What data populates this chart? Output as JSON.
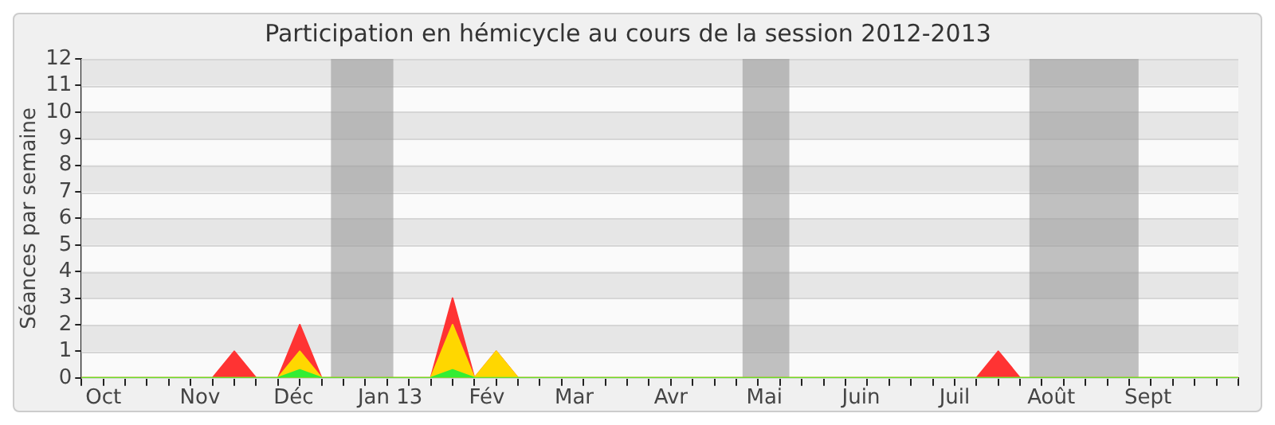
{
  "chart_data": {
    "type": "area",
    "title": "Participation en hémicycle au cours de la session 2012-2013",
    "ylabel": "Séances par semaine",
    "x": [
      "2012-09-24",
      "2012-10-01",
      "2012-10-08",
      "2012-10-15",
      "2012-10-22",
      "2012-10-29",
      "2012-11-05",
      "2012-11-12",
      "2012-11-19",
      "2012-11-26",
      "2012-12-03",
      "2012-12-10",
      "2012-12-17",
      "2012-12-24",
      "2012-12-31",
      "2013-01-07",
      "2013-01-14",
      "2013-01-21",
      "2013-01-28",
      "2013-02-04",
      "2013-02-11",
      "2013-02-18",
      "2013-02-25",
      "2013-03-04",
      "2013-03-11",
      "2013-03-18",
      "2013-03-25",
      "2013-04-01",
      "2013-04-08",
      "2013-04-15",
      "2013-04-22",
      "2013-04-29",
      "2013-05-06",
      "2013-05-13",
      "2013-05-20",
      "2013-05-27",
      "2013-06-03",
      "2013-06-10",
      "2013-06-17",
      "2013-06-24",
      "2013-07-01",
      "2013-07-08",
      "2013-07-15",
      "2013-07-22",
      "2013-07-29",
      "2013-08-05",
      "2013-08-12",
      "2013-08-19",
      "2013-08-26",
      "2013-09-02",
      "2013-09-09",
      "2013-09-16",
      "2013-09-23",
      "2013-09-30"
    ],
    "series": [
      {
        "color": "#ff3333",
        "values": [
          0,
          0,
          0,
          0,
          0,
          0,
          0,
          1,
          0,
          0,
          2,
          0,
          0,
          0,
          0,
          0,
          0,
          3,
          0,
          1,
          0,
          0,
          0,
          0,
          0,
          0,
          0,
          0,
          0,
          0,
          0,
          0,
          0,
          0,
          0,
          0,
          0,
          0,
          0,
          0,
          0,
          0,
          1,
          0,
          0,
          0,
          0,
          0,
          0,
          0,
          0,
          0,
          0,
          0
        ]
      },
      {
        "color": "#ffd700",
        "values": [
          0,
          0,
          0,
          0,
          0,
          0,
          0,
          0,
          0,
          0,
          1,
          0,
          0,
          0,
          0,
          0,
          0,
          2,
          0,
          1,
          0,
          0,
          0,
          0,
          0,
          0,
          0,
          0,
          0,
          0,
          0,
          0,
          0,
          0,
          0,
          0,
          0,
          0,
          0,
          0,
          0,
          0,
          0,
          0,
          0,
          0,
          0,
          0,
          0,
          0,
          0,
          0,
          0,
          0
        ]
      },
      {
        "color": "#33ee33",
        "values": [
          0,
          0,
          0,
          0,
          0,
          0,
          0,
          0,
          0,
          0,
          0.3,
          0,
          0,
          0,
          0,
          0,
          0,
          0.3,
          0,
          0,
          0,
          0,
          0,
          0,
          0,
          0,
          0,
          0,
          0,
          0,
          0,
          0,
          0,
          0,
          0,
          0,
          0,
          0,
          0,
          0,
          0,
          0,
          0,
          0,
          0,
          0,
          0,
          0,
          0,
          0,
          0,
          0,
          0,
          0
        ]
      }
    ],
    "xlim": [
      "2012-09-24",
      "2013-09-30"
    ],
    "xticks": [
      {
        "value": "2012-09-24",
        "label": null
      },
      {
        "value": "2012-10-01",
        "label": null
      },
      {
        "value": "2012-10-08",
        "label": null
      },
      {
        "value": "2012-10-15",
        "label": null
      },
      {
        "value": "2012-10-22",
        "label": null
      },
      {
        "value": "2012-10-29",
        "label": null
      },
      {
        "value": "2012-11-05",
        "label": null
      },
      {
        "value": "2012-11-12",
        "label": null
      },
      {
        "value": "2012-11-19",
        "label": null
      },
      {
        "value": "2012-11-26",
        "label": null
      },
      {
        "value": "2012-12-03",
        "label": null
      },
      {
        "value": "2012-12-10",
        "label": null
      },
      {
        "value": "2012-12-17",
        "label": null
      },
      {
        "value": "2012-12-24",
        "label": null
      },
      {
        "value": "2012-12-31",
        "label": null
      },
      {
        "value": "2013-01-07",
        "label": null
      },
      {
        "value": "2013-01-14",
        "label": null
      },
      {
        "value": "2013-01-21",
        "label": null
      },
      {
        "value": "2013-01-28",
        "label": null
      },
      {
        "value": "2013-02-04",
        "label": null
      },
      {
        "value": "2013-02-11",
        "label": null
      },
      {
        "value": "2013-02-18",
        "label": null
      },
      {
        "value": "2013-02-25",
        "label": null
      },
      {
        "value": "2013-03-04",
        "label": null
      },
      {
        "value": "2013-03-11",
        "label": null
      },
      {
        "value": "2013-03-18",
        "label": null
      },
      {
        "value": "2013-03-25",
        "label": null
      },
      {
        "value": "2013-04-01",
        "label": null
      },
      {
        "value": "2013-04-08",
        "label": null
      },
      {
        "value": "2013-04-15",
        "label": null
      },
      {
        "value": "2013-04-22",
        "label": null
      },
      {
        "value": "2013-04-29",
        "label": null
      },
      {
        "value": "2013-05-06",
        "label": null
      },
      {
        "value": "2013-05-13",
        "label": null
      },
      {
        "value": "2013-05-20",
        "label": null
      },
      {
        "value": "2013-05-27",
        "label": null
      },
      {
        "value": "2013-06-03",
        "label": null
      },
      {
        "value": "2013-06-10",
        "label": null
      },
      {
        "value": "2013-06-17",
        "label": null
      },
      {
        "value": "2013-06-24",
        "label": null
      },
      {
        "value": "2013-07-01",
        "label": null
      },
      {
        "value": "2013-07-08",
        "label": null
      },
      {
        "value": "2013-07-15",
        "label": null
      },
      {
        "value": "2013-07-22",
        "label": null
      },
      {
        "value": "2013-07-29",
        "label": null
      },
      {
        "value": "2013-08-05",
        "label": null
      },
      {
        "value": "2013-08-12",
        "label": null
      },
      {
        "value": "2013-08-19",
        "label": null
      },
      {
        "value": "2013-08-26",
        "label": null
      },
      {
        "value": "2013-09-02",
        "label": null
      },
      {
        "value": "2013-09-09",
        "label": null
      },
      {
        "value": "2013-09-16",
        "label": null
      },
      {
        "value": "2013-09-23",
        "label": null
      },
      {
        "value": "2013-09-30",
        "label": null
      },
      {
        "value": "2012-10-01",
        "label": "Oct"
      },
      {
        "value": "2012-11-01",
        "label": "Nov"
      },
      {
        "value": "2012-12-01",
        "label": "Déc"
      },
      {
        "value": "2013-01-01",
        "label": "Jan 13"
      },
      {
        "value": "2013-02-01",
        "label": "Fév"
      },
      {
        "value": "2013-03-01",
        "label": "Mar"
      },
      {
        "value": "2013-04-01",
        "label": "Avr"
      },
      {
        "value": "2013-05-01",
        "label": "Mai"
      },
      {
        "value": "2013-06-01",
        "label": "Juin"
      },
      {
        "value": "2013-07-01",
        "label": "Juil"
      },
      {
        "value": "2013-08-01",
        "label": "Août"
      },
      {
        "value": "2013-09-01",
        "label": "Sept"
      }
    ],
    "ylim": [
      0,
      12
    ],
    "yticks": [
      0,
      1,
      2,
      3,
      4,
      5,
      6,
      7,
      8,
      9,
      10,
      11,
      12
    ],
    "bands": [
      {
        "axis": "x",
        "from": "2012-12-13",
        "to": "2013-01-02",
        "color": "#999999"
      },
      {
        "axis": "x",
        "from": "2013-04-24",
        "to": "2013-05-09",
        "color": "#999999"
      },
      {
        "axis": "x",
        "from": "2013-07-25",
        "to": "2013-08-29",
        "color": "#999999"
      }
    ],
    "grid": "y",
    "legend": false,
    "marker": "none",
    "line_style": "solid"
  }
}
